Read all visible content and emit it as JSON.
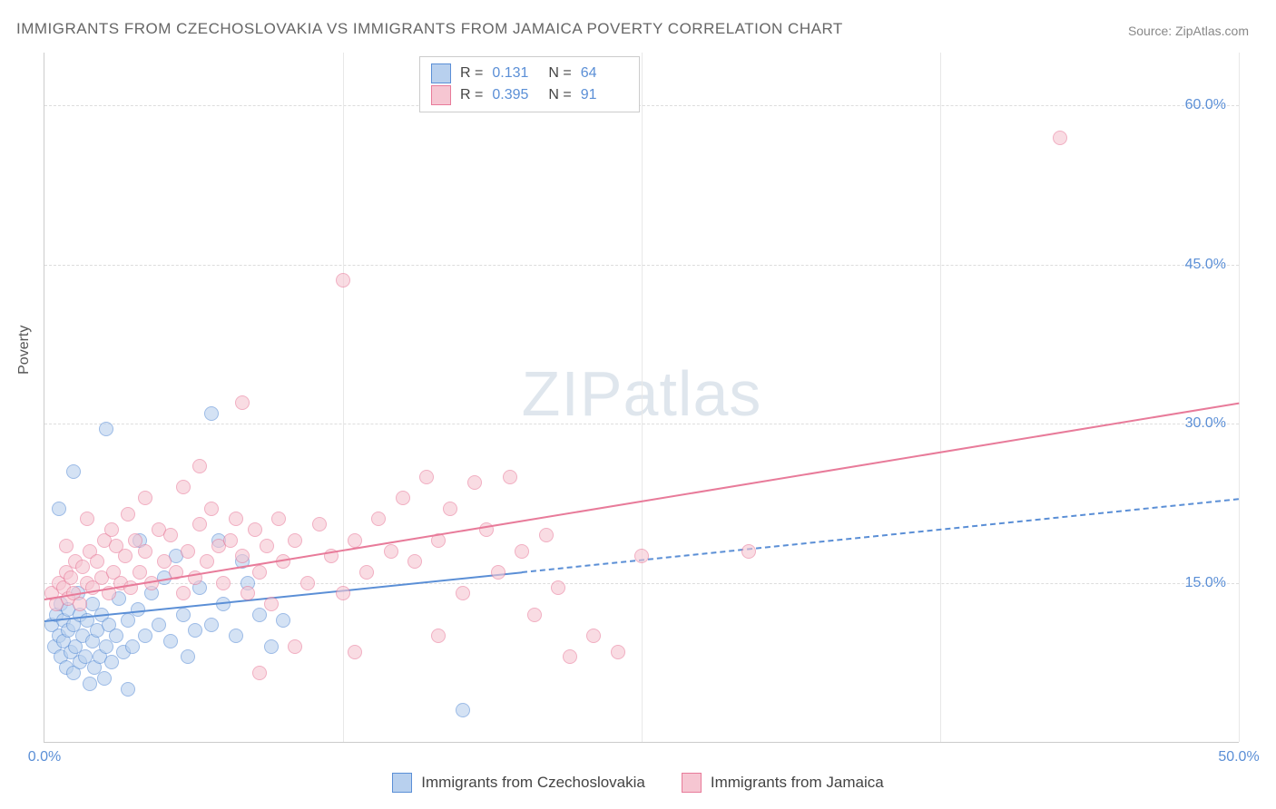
{
  "title": "IMMIGRANTS FROM CZECHOSLOVAKIA VS IMMIGRANTS FROM JAMAICA POVERTY CORRELATION CHART",
  "source": "Source: ZipAtlas.com",
  "ylabel": "Poverty",
  "watermark": "ZIPatlas",
  "chart": {
    "type": "scatter",
    "xlim": [
      0,
      50
    ],
    "ylim": [
      0,
      65
    ],
    "xticks": [
      {
        "v": 0,
        "l": "0.0%"
      },
      {
        "v": 50,
        "l": "50.0%"
      }
    ],
    "yticks": [
      {
        "v": 15,
        "l": "15.0%"
      },
      {
        "v": 30,
        "l": "30.0%"
      },
      {
        "v": 45,
        "l": "45.0%"
      },
      {
        "v": 60,
        "l": "60.0%"
      }
    ],
    "x_gridlines": [
      12.5,
      25,
      37.5,
      50
    ],
    "background_color": "#ffffff",
    "grid_color": "#dddddd",
    "series": [
      {
        "name": "Immigrants from Czechoslovakia",
        "color_fill": "#b8d0ee",
        "color_stroke": "#5b8fd6",
        "R": "0.131",
        "N": "64",
        "trend": {
          "x0": 0,
          "y0": 11.5,
          "x1": 50,
          "y1": 23,
          "solid_until_x": 20
        },
        "points": [
          [
            0.3,
            11
          ],
          [
            0.4,
            9
          ],
          [
            0.5,
            12
          ],
          [
            0.6,
            10
          ],
          [
            0.7,
            8
          ],
          [
            0.7,
            13
          ],
          [
            0.8,
            11.5
          ],
          [
            0.8,
            9.5
          ],
          [
            0.9,
            7
          ],
          [
            1.0,
            10.5
          ],
          [
            1.0,
            12.5
          ],
          [
            1.1,
            8.5
          ],
          [
            1.2,
            11
          ],
          [
            1.2,
            6.5
          ],
          [
            1.3,
            9
          ],
          [
            1.4,
            14
          ],
          [
            1.5,
            7.5
          ],
          [
            1.5,
            12
          ],
          [
            1.6,
            10
          ],
          [
            1.7,
            8
          ],
          [
            1.8,
            11.5
          ],
          [
            1.9,
            5.5
          ],
          [
            2.0,
            9.5
          ],
          [
            2.0,
            13
          ],
          [
            2.1,
            7
          ],
          [
            2.2,
            10.5
          ],
          [
            2.3,
            8
          ],
          [
            2.4,
            12
          ],
          [
            2.5,
            6
          ],
          [
            2.6,
            9
          ],
          [
            2.7,
            11
          ],
          [
            2.8,
            7.5
          ],
          [
            3.0,
            10
          ],
          [
            3.1,
            13.5
          ],
          [
            3.3,
            8.5
          ],
          [
            3.5,
            11.5
          ],
          [
            3.7,
            9
          ],
          [
            3.9,
            12.5
          ],
          [
            4.0,
            19
          ],
          [
            4.2,
            10
          ],
          [
            4.5,
            14
          ],
          [
            4.8,
            11
          ],
          [
            5.0,
            15.5
          ],
          [
            5.3,
            9.5
          ],
          [
            5.5,
            17.5
          ],
          [
            5.8,
            12
          ],
          [
            6.0,
            8
          ],
          [
            6.3,
            10.5
          ],
          [
            6.5,
            14.5
          ],
          [
            7.0,
            11
          ],
          [
            7.3,
            19
          ],
          [
            7.5,
            13
          ],
          [
            8.0,
            10
          ],
          [
            8.5,
            15
          ],
          [
            9.0,
            12
          ],
          [
            9.5,
            9
          ],
          [
            10.0,
            11.5
          ],
          [
            0.6,
            22
          ],
          [
            1.2,
            25.5
          ],
          [
            2.6,
            29.5
          ],
          [
            7.0,
            31
          ],
          [
            8.3,
            17
          ],
          [
            3.5,
            5
          ],
          [
            17.5,
            3
          ]
        ]
      },
      {
        "name": "Immigrants from Jamaica",
        "color_fill": "#f6c6d2",
        "color_stroke": "#e87b9a",
        "R": "0.395",
        "N": "91",
        "trend": {
          "x0": 0,
          "y0": 13.5,
          "x1": 50,
          "y1": 32,
          "solid_until_x": 50
        },
        "points": [
          [
            0.3,
            14
          ],
          [
            0.5,
            13
          ],
          [
            0.6,
            15
          ],
          [
            0.8,
            14.5
          ],
          [
            0.9,
            16
          ],
          [
            1.0,
            13.5
          ],
          [
            1.1,
            15.5
          ],
          [
            1.2,
            14
          ],
          [
            1.3,
            17
          ],
          [
            1.5,
            13
          ],
          [
            1.6,
            16.5
          ],
          [
            1.8,
            15
          ],
          [
            1.9,
            18
          ],
          [
            2.0,
            14.5
          ],
          [
            2.2,
            17
          ],
          [
            2.4,
            15.5
          ],
          [
            2.5,
            19
          ],
          [
            2.7,
            14
          ],
          [
            2.9,
            16
          ],
          [
            3.0,
            18.5
          ],
          [
            3.2,
            15
          ],
          [
            3.4,
            17.5
          ],
          [
            3.6,
            14.5
          ],
          [
            3.8,
            19
          ],
          [
            4.0,
            16
          ],
          [
            4.2,
            18
          ],
          [
            4.5,
            15
          ],
          [
            4.8,
            20
          ],
          [
            5.0,
            17
          ],
          [
            5.3,
            19.5
          ],
          [
            5.5,
            16
          ],
          [
            5.8,
            14
          ],
          [
            6.0,
            18
          ],
          [
            6.3,
            15.5
          ],
          [
            6.5,
            20.5
          ],
          [
            6.8,
            17
          ],
          [
            7.0,
            22
          ],
          [
            7.3,
            18.5
          ],
          [
            7.5,
            15
          ],
          [
            7.8,
            19
          ],
          [
            8.0,
            21
          ],
          [
            8.3,
            17.5
          ],
          [
            8.5,
            14
          ],
          [
            8.8,
            20
          ],
          [
            9.0,
            16
          ],
          [
            9.3,
            18.5
          ],
          [
            9.5,
            13
          ],
          [
            9.8,
            21
          ],
          [
            10.0,
            17
          ],
          [
            10.5,
            19
          ],
          [
            11.0,
            15
          ],
          [
            11.5,
            20.5
          ],
          [
            12.0,
            17.5
          ],
          [
            12.5,
            14
          ],
          [
            13.0,
            19
          ],
          [
            13.5,
            16
          ],
          [
            14.0,
            21
          ],
          [
            14.5,
            18
          ],
          [
            15.0,
            23
          ],
          [
            15.5,
            17
          ],
          [
            16.0,
            25
          ],
          [
            16.5,
            19
          ],
          [
            17.0,
            22
          ],
          [
            17.5,
            14
          ],
          [
            18.0,
            24.5
          ],
          [
            18.5,
            20
          ],
          [
            19.0,
            16
          ],
          [
            19.5,
            25
          ],
          [
            20.0,
            18
          ],
          [
            20.5,
            12
          ],
          [
            21.0,
            19.5
          ],
          [
            21.5,
            14.5
          ],
          [
            22.0,
            8
          ],
          [
            23.0,
            10
          ],
          [
            24.0,
            8.5
          ],
          [
            25.0,
            17.5
          ],
          [
            8.3,
            32
          ],
          [
            6.5,
            26
          ],
          [
            5.8,
            24
          ],
          [
            4.2,
            23
          ],
          [
            3.5,
            21.5
          ],
          [
            2.8,
            20
          ],
          [
            1.8,
            21
          ],
          [
            0.9,
            18.5
          ],
          [
            12.5,
            43.5
          ],
          [
            29.5,
            18
          ],
          [
            42.5,
            57
          ],
          [
            10.5,
            9
          ],
          [
            13.0,
            8.5
          ],
          [
            16.5,
            10
          ],
          [
            9.0,
            6.5
          ]
        ]
      }
    ]
  },
  "legend_box": {
    "rows": [
      {
        "swatch_fill": "#b8d0ee",
        "swatch_stroke": "#5b8fd6",
        "r_label": "R =",
        "r_val": "0.131",
        "n_label": "N =",
        "n_val": "64"
      },
      {
        "swatch_fill": "#f6c6d2",
        "swatch_stroke": "#e87b9a",
        "r_label": "R =",
        "r_val": "0.395",
        "n_label": "N =",
        "n_val": "91"
      }
    ]
  },
  "bottom_legend": [
    {
      "swatch_fill": "#b8d0ee",
      "swatch_stroke": "#5b8fd6",
      "label": "Immigrants from Czechoslovakia"
    },
    {
      "swatch_fill": "#f6c6d2",
      "swatch_stroke": "#e87b9a",
      "label": "Immigrants from Jamaica"
    }
  ]
}
